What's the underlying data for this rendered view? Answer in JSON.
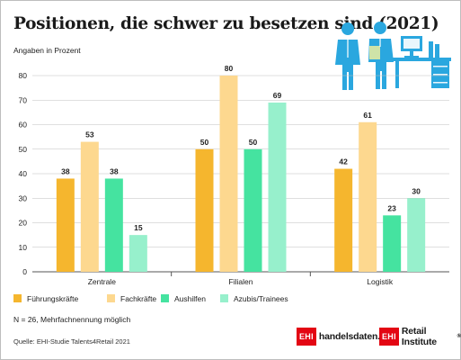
{
  "header": {
    "title": "Positionen, die schwer zu besetzen sind (2021)",
    "unit_label": "Angaben in Prozent"
  },
  "colors": {
    "Führungskräfte": "#f5b62e",
    "Fachkräfte": "#fdd88f",
    "Aushilfen": "#45e3a0",
    "Azubis/Trainees": "#97f0cc",
    "icon": "#2aa7df",
    "grid": "#bfbfbf"
  },
  "chart_data": {
    "type": "bar",
    "categories": [
      "Zentrale",
      "Filialen",
      "Logistik"
    ],
    "series": [
      {
        "name": "Führungskräfte",
        "values": [
          38,
          50,
          42
        ]
      },
      {
        "name": "Fachkräfte",
        "values": [
          53,
          80,
          61
        ]
      },
      {
        "name": "Aushilfen",
        "values": [
          38,
          50,
          23
        ]
      },
      {
        "name": "Azubis/Trainees",
        "values": [
          15,
          69,
          30
        ]
      }
    ],
    "ylabel": "Angaben in Prozent",
    "ylim": [
      0,
      80
    ],
    "yticks": [
      0,
      10,
      20,
      30,
      40,
      50,
      60,
      70,
      80
    ],
    "grid": true,
    "legend": "bottom"
  },
  "footer": {
    "note": "N = 26, Mehrfachnennung möglich",
    "source": "Quelle: EHI-Studie Talents4Retail 2021",
    "logo1_box": "EHI",
    "logo1_text": "handelsdaten.de",
    "logo2_box": "EHI",
    "logo2_text": "Retail Institute",
    "logo2_mark": "®"
  },
  "illustration": {
    "icon": "office-workers-desk-icon"
  }
}
